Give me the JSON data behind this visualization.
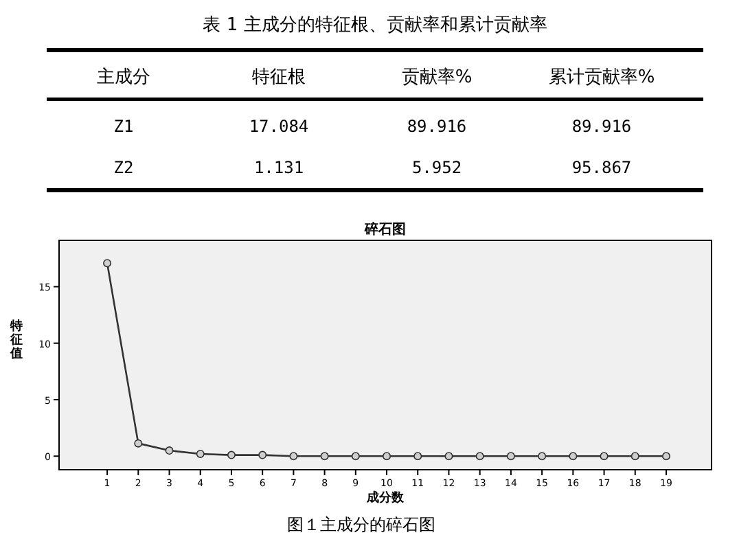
{
  "chart_data": [
    {
      "type": "other",
      "title": "表 1 主成分的特征根、贡献率和累计贡献率",
      "annotations": [
        "主成分",
        "特征根",
        "贡献率%",
        "累计贡献率%",
        "Z1",
        "17.084",
        "89.916",
        "89.916",
        "Z2",
        "1.131",
        "5.952",
        "95.867"
      ]
    },
    {
      "type": "line",
      "title": "碎石图",
      "xlabel": "成分数",
      "ylabel": "特征值",
      "x": [
        1,
        2,
        3,
        4,
        5,
        6,
        7,
        8,
        9,
        10,
        11,
        12,
        13,
        14,
        15,
        16,
        17,
        18,
        19
      ],
      "series": [
        {
          "color": "#333333",
          "values": [
            17.084,
            1.131,
            0.5,
            0.2,
            0.1,
            0.1,
            0,
            0,
            0,
            0,
            0,
            0,
            0,
            0,
            0,
            0,
            0,
            0,
            0
          ]
        }
      ],
      "xlim": [
        -0.55,
        20.46
      ],
      "ylim": [
        -1.2,
        19.1
      ],
      "xticks": [
        1,
        2,
        3,
        4,
        5,
        6,
        7,
        8,
        9,
        10,
        11,
        12,
        13,
        14,
        15,
        16,
        17,
        18,
        19
      ],
      "yticks": [
        0,
        5,
        10,
        15
      ],
      "marker": "circle",
      "grid": false,
      "annotations": [
        "图１主成分的碎石图"
      ]
    }
  ]
}
